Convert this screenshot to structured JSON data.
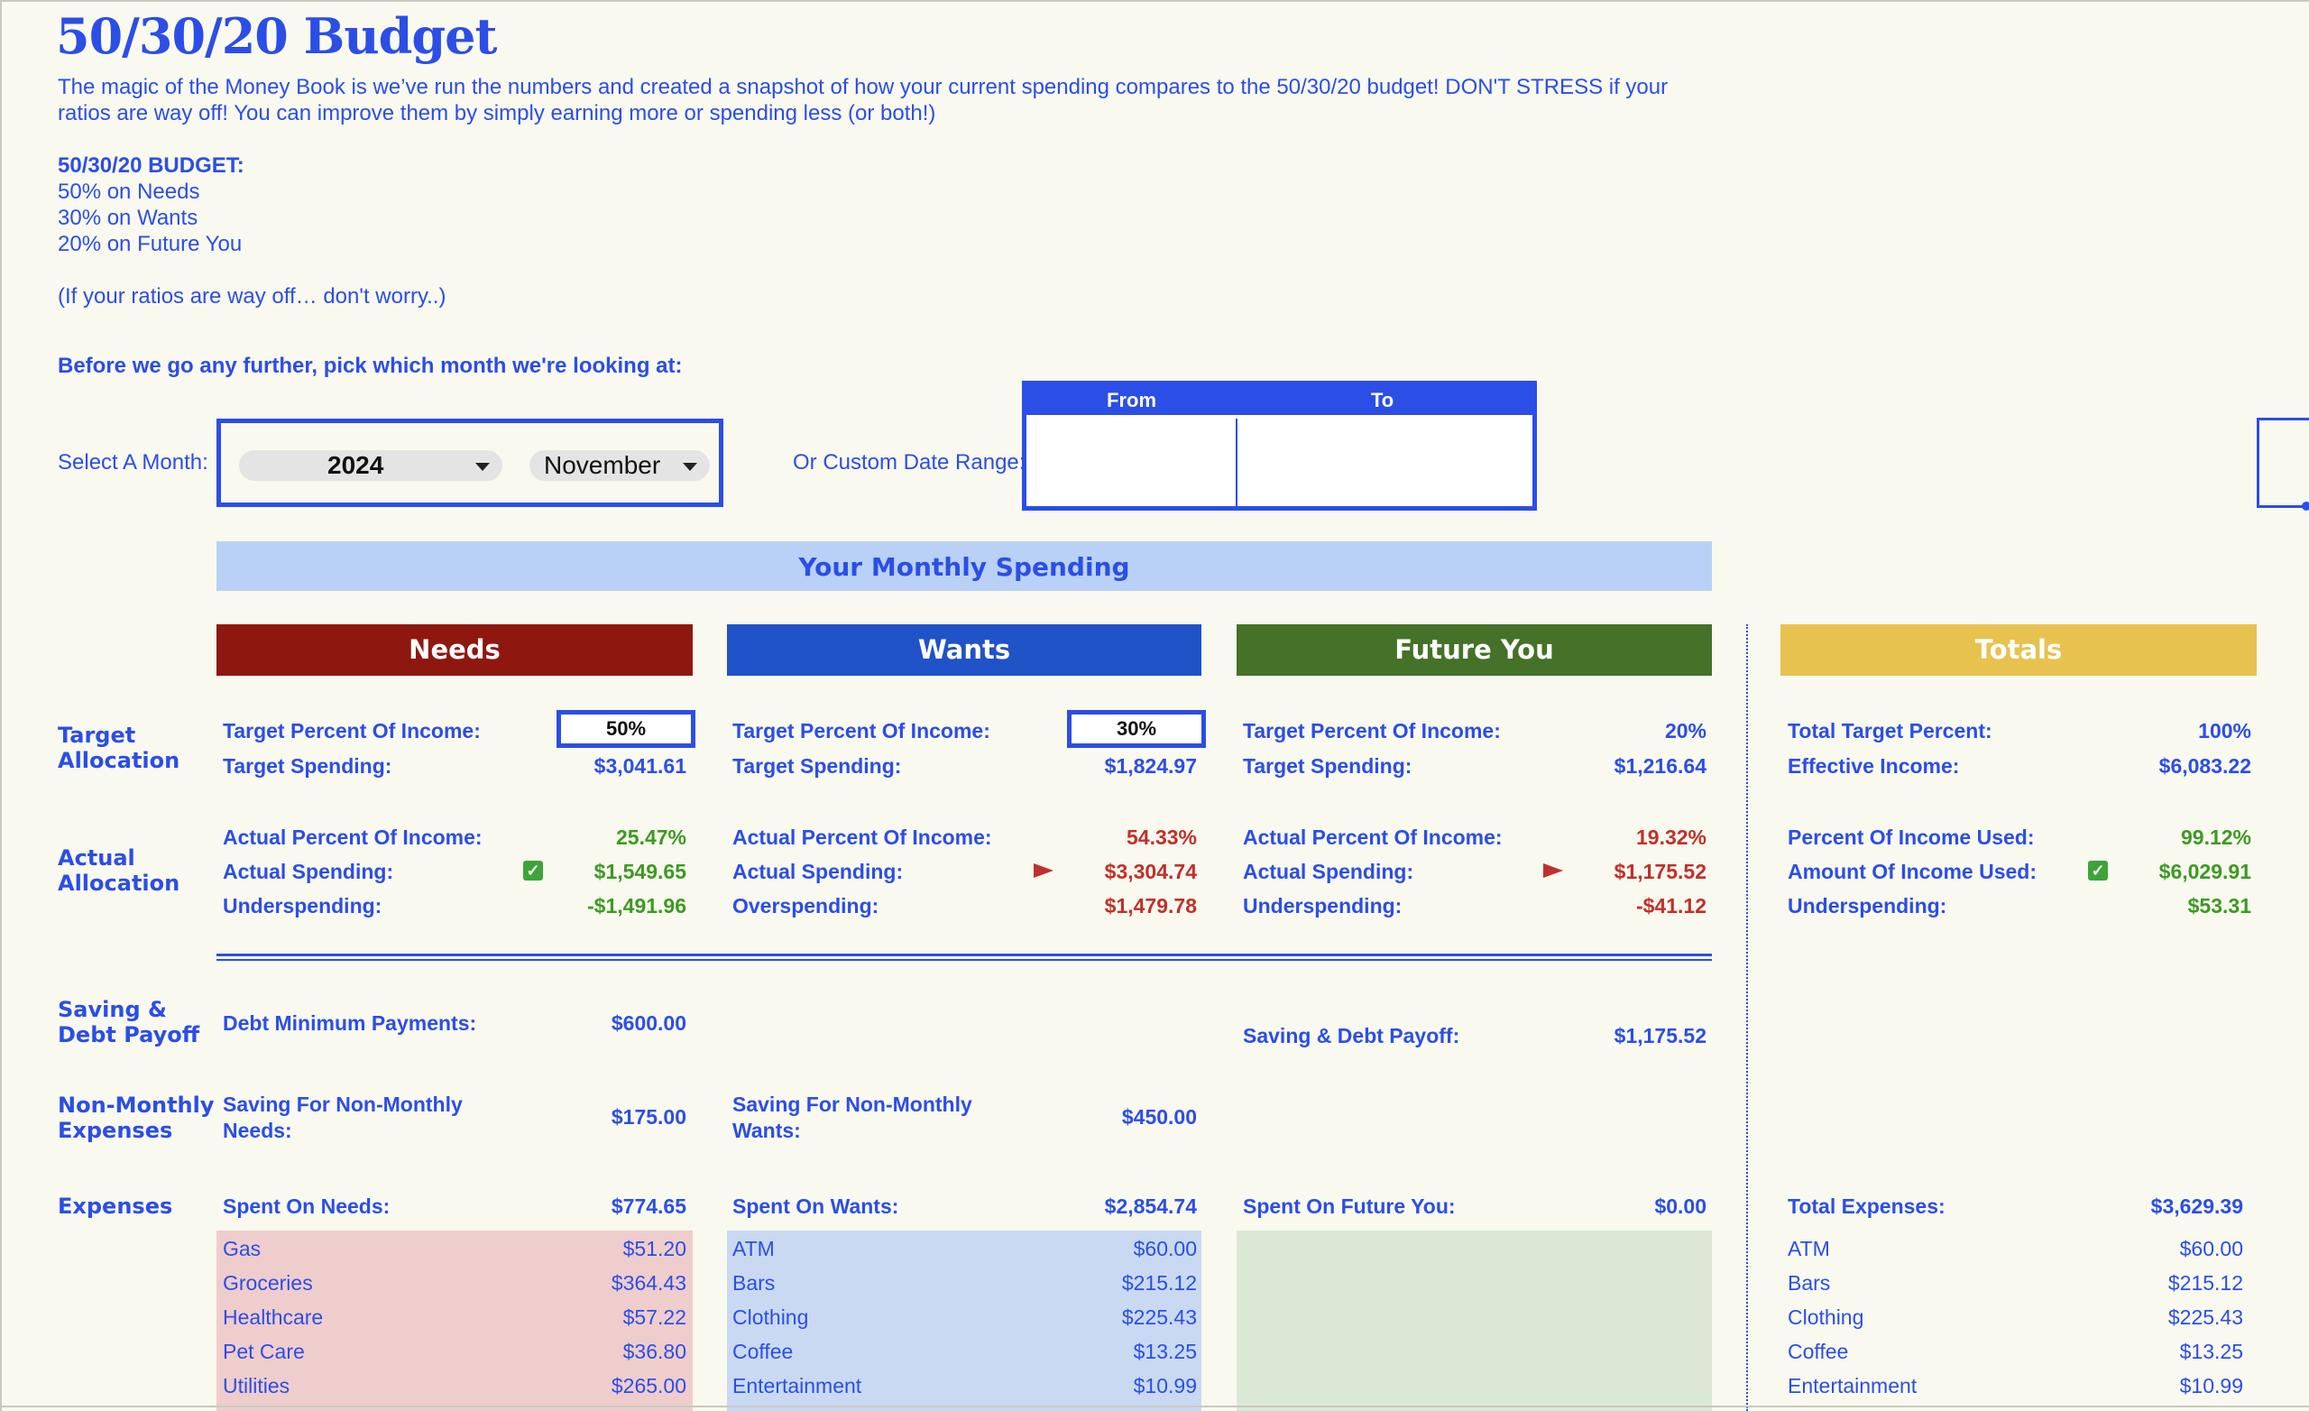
{
  "title": "50/30/20 Budget",
  "intro": {
    "line1": "The magic of the Money Book is we’ve run the numbers and created a snapshot of how your current spending compares to the 50/30/20 budget! DON'T STRESS if your",
    "line2": "ratios are way off! You can improve them by simply earning more or spending less (or both!)",
    "heading": "50/30/20 BUDGET:",
    "needs": "50% on Needs",
    "wants": "30% on Wants",
    "future": "20% on Future You",
    "note": "(If your ratios are way off… don't worry..)",
    "pick": "Before we go any further, pick which month we're looking at:"
  },
  "selector": {
    "label": "Select A Month:",
    "year": "2024",
    "month": "November",
    "custom_label": "Or Custom Date Range:",
    "from": "From",
    "to": "To"
  },
  "band": "Your Monthly Spending",
  "headers": {
    "needs": "Needs",
    "wants": "Wants",
    "future": "Future You",
    "totals": "Totals"
  },
  "row_labels": {
    "target": [
      "Target",
      "Allocation"
    ],
    "actual": [
      "Actual",
      "Allocation"
    ],
    "saving": [
      "Saving &",
      "Debt Payoff"
    ],
    "nonmonthly": [
      "Non-Monthly",
      "Expenses"
    ],
    "expenses": "Expenses"
  },
  "needs": {
    "target_pct_label": "Target Percent Of Income:",
    "target_pct": "50%",
    "target_spend_label": "Target Spending:",
    "target_spend": "$3,041.61",
    "actual_pct_label": "Actual Percent Of Income:",
    "actual_pct": "25.47%",
    "actual_spend_label": "Actual Spending:",
    "actual_spend": "$1,549.65",
    "diff_label": "Underspending:",
    "diff": "-$1,491.96",
    "debt_label": "Debt Minimum Payments:",
    "debt": "$600.00",
    "nonmonthly_label1": "Saving For Non-Monthly",
    "nonmonthly_label2": "Needs:",
    "nonmonthly": "$175.00",
    "spent_label": "Spent On Needs:",
    "spent": "$774.65",
    "categories": [
      {
        "name": "Gas",
        "amount": "$51.20"
      },
      {
        "name": "Groceries",
        "amount": "$364.43"
      },
      {
        "name": "Healthcare",
        "amount": "$57.22"
      },
      {
        "name": "Pet Care",
        "amount": "$36.80"
      },
      {
        "name": "Utilities",
        "amount": "$265.00"
      }
    ]
  },
  "wants": {
    "target_pct_label": "Target Percent Of Income:",
    "target_pct": "30%",
    "target_spend_label": "Target Spending:",
    "target_spend": "$1,824.97",
    "actual_pct_label": "Actual Percent Of Income:",
    "actual_pct": "54.33%",
    "actual_spend_label": "Actual Spending:",
    "actual_spend": "$3,304.74",
    "diff_label": "Overspending:",
    "diff": "$1,479.78",
    "nonmonthly_label1": "Saving For Non-Monthly",
    "nonmonthly_label2": "Wants:",
    "nonmonthly": "$450.00",
    "spent_label": "Spent On Wants:",
    "spent": "$2,854.74",
    "categories": [
      {
        "name": "ATM",
        "amount": "$60.00"
      },
      {
        "name": "Bars",
        "amount": "$215.12"
      },
      {
        "name": "Clothing",
        "amount": "$225.43"
      },
      {
        "name": "Coffee",
        "amount": "$13.25"
      },
      {
        "name": "Entertainment",
        "amount": "$10.99"
      }
    ]
  },
  "future": {
    "target_pct_label": "Target Percent Of Income:",
    "target_pct": "20%",
    "target_spend_label": "Target Spending:",
    "target_spend": "$1,216.64",
    "actual_pct_label": "Actual Percent Of Income:",
    "actual_pct": "19.32%",
    "actual_spend_label": "Actual Spending:",
    "actual_spend": "$1,175.52",
    "diff_label": "Underspending:",
    "diff": "-$41.12",
    "saving_label": "Saving & Debt Payoff:",
    "saving": "$1,175.52",
    "spent_label": "Spent On Future You:",
    "spent": "$0.00"
  },
  "totals": {
    "target_pct_label": "Total Target Percent:",
    "target_pct": "100%",
    "income_label": "Effective Income:",
    "income": "$6,083.22",
    "pct_used_label": "Percent Of Income Used:",
    "pct_used": "99.12%",
    "amount_used_label": "Amount Of Income Used:",
    "amount_used": "$6,029.91",
    "diff_label": "Underspending:",
    "diff": "$53.31",
    "spent_label": "Total Expenses:",
    "spent": "$3,629.39",
    "categories": [
      {
        "name": "ATM",
        "amount": "$60.00"
      },
      {
        "name": "Bars",
        "amount": "$215.12"
      },
      {
        "name": "Clothing",
        "amount": "$225.43"
      },
      {
        "name": "Coffee",
        "amount": "$13.25"
      },
      {
        "name": "Entertainment",
        "amount": "$10.99"
      }
    ]
  },
  "colors": {
    "accent": "#2b4ee6",
    "needs": "#8e1810",
    "wants": "#2052c8",
    "future": "#457128",
    "totals": "#e8c24f",
    "positive": "#3c9a22",
    "negative": "#c0302a"
  },
  "icons": {
    "good": "checkmark-icon",
    "warning": "flag-icon",
    "dropdown": "chevron-down-icon"
  }
}
